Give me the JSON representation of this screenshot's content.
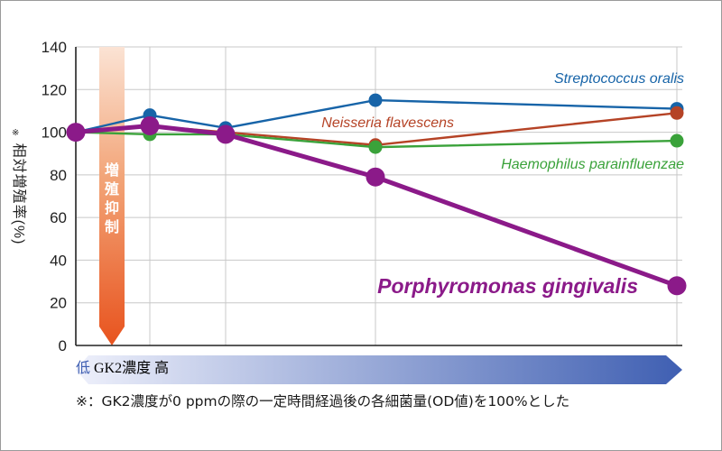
{
  "chart_data": {
    "type": "line",
    "ylabel": "相対増殖率(%)",
    "ylabel_mark": "※",
    "ylim": [
      0,
      140
    ],
    "yticks": [
      "0",
      "20",
      "40",
      "60",
      "80",
      "100",
      "120",
      "140"
    ],
    "x": [
      0,
      1,
      2,
      3,
      4
    ],
    "grid": true,
    "series": [
      {
        "name": "Streptococcus oralis",
        "color": "#1764a8",
        "values": [
          100,
          108,
          102,
          115,
          111
        ]
      },
      {
        "name": "Neisseria flavescens",
        "color": "#b54326",
        "values": [
          100,
          103,
          100,
          94,
          109
        ]
      },
      {
        "name": "Haemophilus parainfluenzae",
        "color": "#3aa23a",
        "values": [
          100,
          99,
          99,
          93,
          96
        ]
      },
      {
        "name": "Porphyromonas gingivalis",
        "color": "#8b1a89",
        "values": [
          100,
          103,
          99,
          79,
          28
        ]
      }
    ],
    "annotation": "増殖抑制",
    "xaxis": {
      "label": "GK2濃度",
      "low": "低",
      "high": "高"
    },
    "footnote": "※：GK2濃度が0 ppmの際の一定時間経過後の各細菌量(OD値)を100%とした"
  }
}
